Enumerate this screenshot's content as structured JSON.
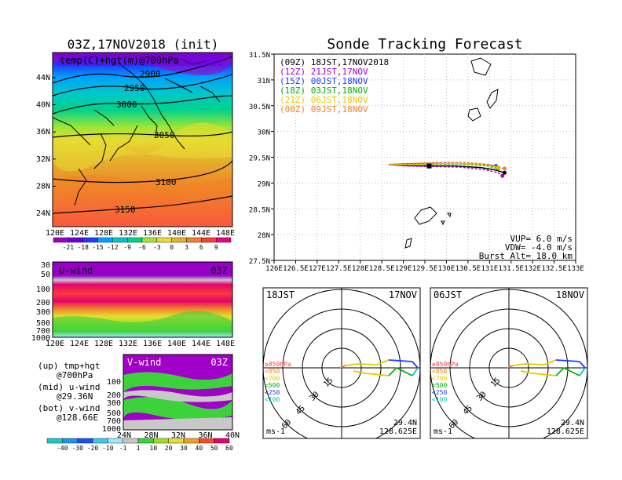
{
  "left_title": "03Z,17NOV2018 (init)",
  "right_title": "Sonde Tracking Forecast",
  "map_panel": {
    "field_label": "temp(C)+hgt(m)@700hPa",
    "contour_labels": [
      "2900",
      "2950",
      "3000",
      "3050",
      "3100",
      "3150"
    ],
    "lat_labels": [
      "44N",
      "40N",
      "36N",
      "32N",
      "28N",
      "24N"
    ],
    "lon_labels": [
      "120E",
      "124E",
      "128E",
      "132E",
      "136E",
      "140E",
      "144E",
      "148E"
    ],
    "colorbar_labels": [
      "-21",
      "-18",
      "-15",
      "-12",
      "-9",
      "-6",
      "-3",
      "0",
      "3",
      "6",
      "9"
    ],
    "colorbar_colors": [
      "#a000c8",
      "#6e00dc",
      "#1e3cff",
      "#00a0ff",
      "#00c8c8",
      "#00d28c",
      "#a0e632",
      "#e6dc32",
      "#e6af2d",
      "#f08228",
      "#fa3c3c",
      "#f00082"
    ]
  },
  "u_panel": {
    "label": "U-wind",
    "time": "03Z",
    "pressure_labels": [
      "30",
      "50",
      "100",
      "200",
      "300",
      "500",
      "700",
      "1000"
    ],
    "lon_labels": [
      "120E",
      "124E",
      "128E",
      "132E",
      "136E",
      "140E",
      "144E",
      "148E"
    ]
  },
  "v_panel": {
    "label": "V-wind",
    "time": "03Z",
    "pressure_labels": [
      "100",
      "200",
      "300",
      "500",
      "700",
      "1000"
    ],
    "lat_labels": [
      "24N",
      "28N",
      "32N",
      "36N",
      "40N"
    ]
  },
  "notes": [
    {
      "a": "(up) tmp+hgt",
      "b": "@700hPa"
    },
    {
      "a": "(mid) u-wind",
      "b": "@29.36N"
    },
    {
      "a": "(bot) v-wind",
      "b": "@128.66E"
    }
  ],
  "wind_colorbar": {
    "labels": [
      "-40",
      "-30",
      "-20",
      "-10",
      "-1",
      "1",
      "10",
      "20",
      "30",
      "40",
      "50",
      "60"
    ],
    "colors": [
      "#1ec8c8",
      "#1e96e6",
      "#1e50f0",
      "#3cc8f0",
      "#a0e6ff",
      "#c8c8c8",
      "#3cd23c",
      "#a0dc28",
      "#e6dc32",
      "#f0a028",
      "#f05028",
      "#e6006e"
    ]
  },
  "track_legend": [
    {
      "label": "(09Z)  18JST,17NOV2018",
      "color": "#000000"
    },
    {
      "label": "(12Z)  21JST,17NOV",
      "color": "#a000c8"
    },
    {
      "label": "(15Z)  00JST,18NOV",
      "color": "#1e3cff"
    },
    {
      "label": "(18Z)  03JST,18NOV",
      "color": "#00b400"
    },
    {
      "label": "(21Z)  06JST,18NOV",
      "color": "#e6c800"
    },
    {
      "label": "(00Z)  09JST,18NOV",
      "color": "#f08228"
    }
  ],
  "track_params": {
    "vup": "VUP=  6.0  m/s",
    "vdw": "VDW= -4.0  m/s",
    "burst": "Burst Alt= 18.0  km"
  },
  "chart_data": {
    "type": "line",
    "title": "Sonde Tracking Forecast",
    "xlim": [
      126,
      133
    ],
    "ylim": [
      27.5,
      31.5
    ],
    "x_ticks": [
      "126E",
      "126.5E",
      "127E",
      "127.5E",
      "128E",
      "128.5E",
      "129E",
      "129.5E",
      "130E",
      "130.5E",
      "131E",
      "131.5E",
      "132E",
      "132.5E",
      "133E"
    ],
    "y_ticks": [
      "31.5N",
      "31N",
      "30.5N",
      "30N",
      "29.5N",
      "29N",
      "28.5N",
      "28N",
      "27.5N"
    ],
    "series": [
      {
        "name": "(09Z)  18JST,17NOV2018",
        "color": "#000000",
        "x": [
          128.66,
          129.0,
          129.6,
          130.2,
          130.8,
          131.1,
          131.35
        ],
        "y": [
          29.36,
          29.34,
          29.33,
          29.33,
          29.3,
          29.26,
          29.2
        ]
      },
      {
        "name": "(12Z)  21JST,17NOV",
        "color": "#a000c8",
        "x": [
          128.66,
          129.1,
          129.7,
          130.3,
          130.9,
          131.2,
          131.3
        ],
        "y": [
          29.36,
          29.33,
          29.32,
          29.31,
          29.26,
          29.2,
          29.14
        ]
      },
      {
        "name": "(15Z)  00JST,18NOV",
        "color": "#1e3cff",
        "x": [
          128.66,
          129.0,
          129.5,
          130.1,
          130.6,
          131.0,
          131.15
        ],
        "y": [
          29.36,
          29.37,
          29.38,
          29.38,
          29.37,
          29.35,
          29.33
        ]
      },
      {
        "name": "(18Z)  03JST,18NOV",
        "color": "#00b400",
        "x": [
          128.66,
          129.1,
          129.7,
          130.3,
          130.9,
          131.2
        ],
        "y": [
          29.36,
          29.35,
          29.36,
          29.37,
          29.34,
          29.28
        ]
      },
      {
        "name": "(21Z)  06JST,18NOV",
        "color": "#e6c800",
        "x": [
          128.66,
          129.1,
          129.7,
          130.3,
          130.9,
          131.2
        ],
        "y": [
          29.36,
          29.36,
          29.37,
          29.38,
          29.36,
          29.3
        ]
      },
      {
        "name": "(00Z)  09JST,18NOV",
        "color": "#f08228",
        "x": [
          128.66,
          129.2,
          129.8,
          130.4,
          131.0,
          131.35
        ],
        "y": [
          29.36,
          29.38,
          29.4,
          29.4,
          29.36,
          29.28
        ]
      }
    ]
  },
  "hodographs": [
    {
      "time": "18JST",
      "date": "17NOV",
      "lat": "29.4N",
      "lon": "128.625E",
      "unit": "ms-1",
      "ring_labels": [
        "15",
        "30",
        "45",
        "60"
      ],
      "level_labels": [
        {
          "label": "≥850hPa",
          "color": "#fa3c3c"
        },
        {
          "label": "<850",
          "color": "#f08228"
        },
        {
          "label": "<700",
          "color": "#e6c800"
        },
        {
          "label": "<500",
          "color": "#00b400"
        },
        {
          "label": "<250",
          "color": "#1e3cff"
        },
        {
          "label": "<100",
          "color": "#00c8c8"
        }
      ]
    },
    {
      "time": "06JST",
      "date": "18NOV",
      "lat": "29.4N",
      "lon": "128.625E",
      "unit": "ms-1",
      "ring_labels": [
        "15",
        "30",
        "45",
        "60"
      ],
      "level_labels": [
        {
          "label": "≥850hPa",
          "color": "#fa3c3c"
        },
        {
          "label": "<850",
          "color": "#f08228"
        },
        {
          "label": "<700",
          "color": "#e6c800"
        },
        {
          "label": "<500",
          "color": "#00b400"
        },
        {
          "label": "<250",
          "color": "#1e3cff"
        },
        {
          "label": "<100",
          "color": "#00c8c8"
        }
      ]
    }
  ]
}
